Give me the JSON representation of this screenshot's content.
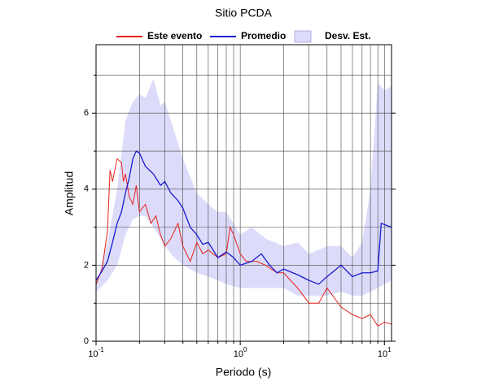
{
  "chart_data": {
    "type": "line",
    "title": "Sitio PCDA",
    "x_label": "Periodo (s)",
    "y_label": "Amplitud",
    "log_x": true,
    "grid": true,
    "legend": "top",
    "xlim": [
      0.1,
      11.2
    ],
    "ylim": [
      0,
      7.8
    ],
    "xticks": [
      {
        "value": 0.1,
        "label": "10",
        "exponent": "-1"
      },
      {
        "value": 1,
        "label": "10",
        "exponent": "0"
      },
      {
        "value": 10,
        "label": "10",
        "exponent": "1"
      }
    ],
    "xminor": [
      0.2,
      0.3,
      0.4,
      0.5,
      0.6,
      0.7,
      0.8,
      0.9,
      2,
      3,
      4,
      5,
      6,
      7,
      8,
      9
    ],
    "yticks": [
      0,
      2,
      4,
      6
    ],
    "yminor": [
      1,
      3,
      5,
      7
    ],
    "band": {
      "name": "Desv. Est.",
      "color": "#dcdcfa",
      "x": [
        0.1,
        0.12,
        0.14,
        0.16,
        0.18,
        0.2,
        0.22,
        0.25,
        0.28,
        0.3,
        0.35,
        0.4,
        0.5,
        0.6,
        0.7,
        0.8,
        1.0,
        1.2,
        1.5,
        2,
        2.5,
        3,
        4,
        5,
        6,
        7,
        8,
        9,
        10,
        11.2
      ],
      "lower": [
        1.3,
        1.6,
        2.0,
        2.8,
        3.2,
        3.3,
        3.3,
        3.0,
        2.7,
        2.5,
        2.2,
        2.0,
        1.8,
        1.7,
        1.6,
        1.5,
        1.4,
        1.4,
        1.4,
        1.4,
        1.2,
        1.2,
        1.2,
        1.3,
        1.2,
        1.2,
        1.3,
        1.4,
        1.5,
        1.6
      ],
      "upper": [
        1.5,
        2.6,
        4.0,
        5.8,
        6.3,
        6.5,
        6.4,
        6.9,
        6.2,
        6.3,
        5.5,
        4.8,
        3.9,
        3.6,
        3.4,
        3.4,
        2.8,
        3.0,
        2.7,
        2.5,
        2.6,
        2.3,
        2.5,
        2.5,
        2.2,
        2.6,
        4.0,
        6.8,
        6.6,
        6.7
      ]
    },
    "series": [
      {
        "name": "Este evento",
        "color": "#e8201a",
        "x": [
          0.1,
          0.11,
          0.12,
          0.125,
          0.13,
          0.14,
          0.15,
          0.155,
          0.16,
          0.17,
          0.18,
          0.19,
          0.2,
          0.22,
          0.24,
          0.26,
          0.28,
          0.3,
          0.33,
          0.37,
          0.4,
          0.45,
          0.5,
          0.55,
          0.6,
          0.7,
          0.8,
          0.85,
          0.9,
          1.0,
          1.1,
          1.3,
          1.5,
          1.8,
          2.0,
          2.5,
          3,
          3.5,
          4,
          5,
          6,
          7,
          8,
          9,
          10,
          11.2
        ],
        "values": [
          1.5,
          1.9,
          2.9,
          4.5,
          4.2,
          4.8,
          4.7,
          4.2,
          4.4,
          3.8,
          3.6,
          4.1,
          3.4,
          3.6,
          3.1,
          3.3,
          2.8,
          2.5,
          2.7,
          3.1,
          2.5,
          2.1,
          2.6,
          2.3,
          2.4,
          2.2,
          2.3,
          3.0,
          2.8,
          2.3,
          2.1,
          2.1,
          2.0,
          1.8,
          1.8,
          1.4,
          1.0,
          1.0,
          1.4,
          0.9,
          0.7,
          0.6,
          0.7,
          0.4,
          0.5,
          0.45
        ]
      },
      {
        "name": "Promedio",
        "color": "#1a1ad0",
        "x": [
          0.1,
          0.11,
          0.12,
          0.13,
          0.14,
          0.15,
          0.16,
          0.17,
          0.18,
          0.19,
          0.2,
          0.22,
          0.25,
          0.28,
          0.3,
          0.33,
          0.37,
          0.4,
          0.45,
          0.5,
          0.55,
          0.6,
          0.7,
          0.8,
          0.9,
          1.0,
          1.2,
          1.4,
          1.6,
          1.8,
          2.0,
          2.5,
          3,
          3.5,
          4,
          5,
          6,
          7,
          8,
          9,
          9.5,
          11.2
        ],
        "values": [
          1.6,
          1.85,
          2.1,
          2.6,
          3.1,
          3.4,
          3.9,
          4.3,
          4.8,
          5.0,
          4.95,
          4.6,
          4.4,
          4.1,
          4.2,
          3.9,
          3.7,
          3.5,
          3.0,
          2.8,
          2.55,
          2.6,
          2.2,
          2.35,
          2.2,
          2.0,
          2.1,
          2.3,
          2.0,
          1.8,
          1.9,
          1.75,
          1.6,
          1.5,
          1.7,
          2.0,
          1.7,
          1.8,
          1.8,
          1.85,
          3.1,
          3.0
        ]
      }
    ]
  }
}
